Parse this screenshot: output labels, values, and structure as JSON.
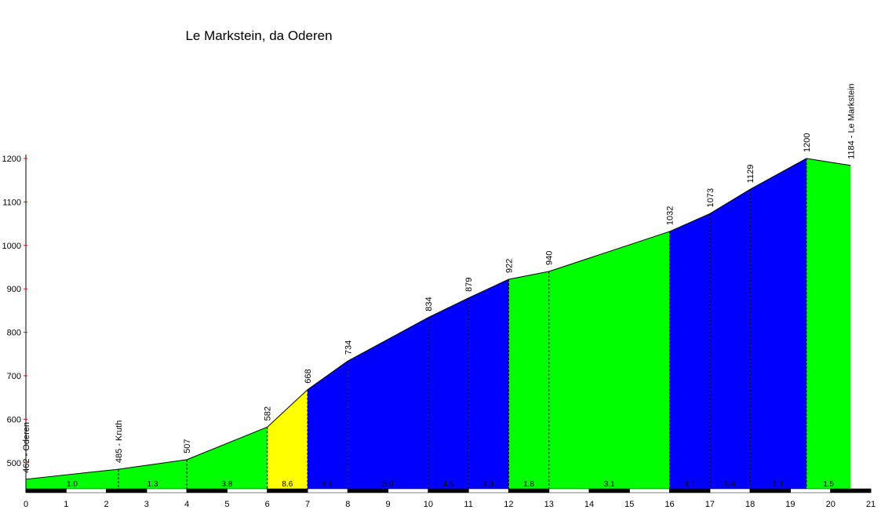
{
  "chart_data": {
    "type": "profile",
    "title": "Le Markstein, da Oderen",
    "x": [
      0,
      2.3,
      4,
      6,
      7,
      8,
      10,
      11,
      12,
      13,
      16,
      17,
      18,
      19.4,
      20.5
    ],
    "series": [
      {
        "values": [
          462,
          485,
          507,
          582,
          668,
          734,
          834,
          879,
          922,
          940,
          1032,
          1073,
          1129,
          1200,
          1184
        ],
        "value_labels": [
          "462 - Oderen",
          "485 - Kruth",
          "507",
          "582",
          "668",
          "734",
          "834",
          "879",
          "922",
          "940",
          "1032",
          "1073",
          "1129",
          "1200",
          "1184 - Le Markstein"
        ]
      }
    ],
    "segments": {
      "values": [
        1.0,
        1.3,
        3.8,
        8.6,
        6.6,
        5.0,
        4.5,
        4.3,
        1.8,
        3.1,
        4.1,
        5.6,
        5.1,
        1.5
      ],
      "value_labels": [
        "1.0",
        "1.3",
        "3.8",
        "8.6",
        "6.6",
        "5.0",
        "4.5",
        "4.3",
        "1.8",
        "3.1",
        "4.1",
        "5.6",
        "5.1",
        "1.5"
      ],
      "colors": [
        "#00ff00",
        "#00ff00",
        "#00ff00",
        "#ffff00",
        "#0000ff",
        "#0000ff",
        "#0000ff",
        "#0000ff",
        "#00ff00",
        "#00ff00",
        "#0000ff",
        "#0000ff",
        "#0000ff",
        "#00ff00"
      ]
    },
    "xlim": [
      0,
      21
    ],
    "xticks": [
      0,
      1,
      2,
      3,
      4,
      5,
      6,
      7,
      8,
      9,
      10,
      11,
      12,
      13,
      14,
      15,
      16,
      17,
      18,
      19,
      20,
      21
    ],
    "ylim": [
      440,
      1200
    ],
    "yticks": [
      500,
      600,
      700,
      800,
      900,
      1000,
      1100,
      1200
    ]
  }
}
